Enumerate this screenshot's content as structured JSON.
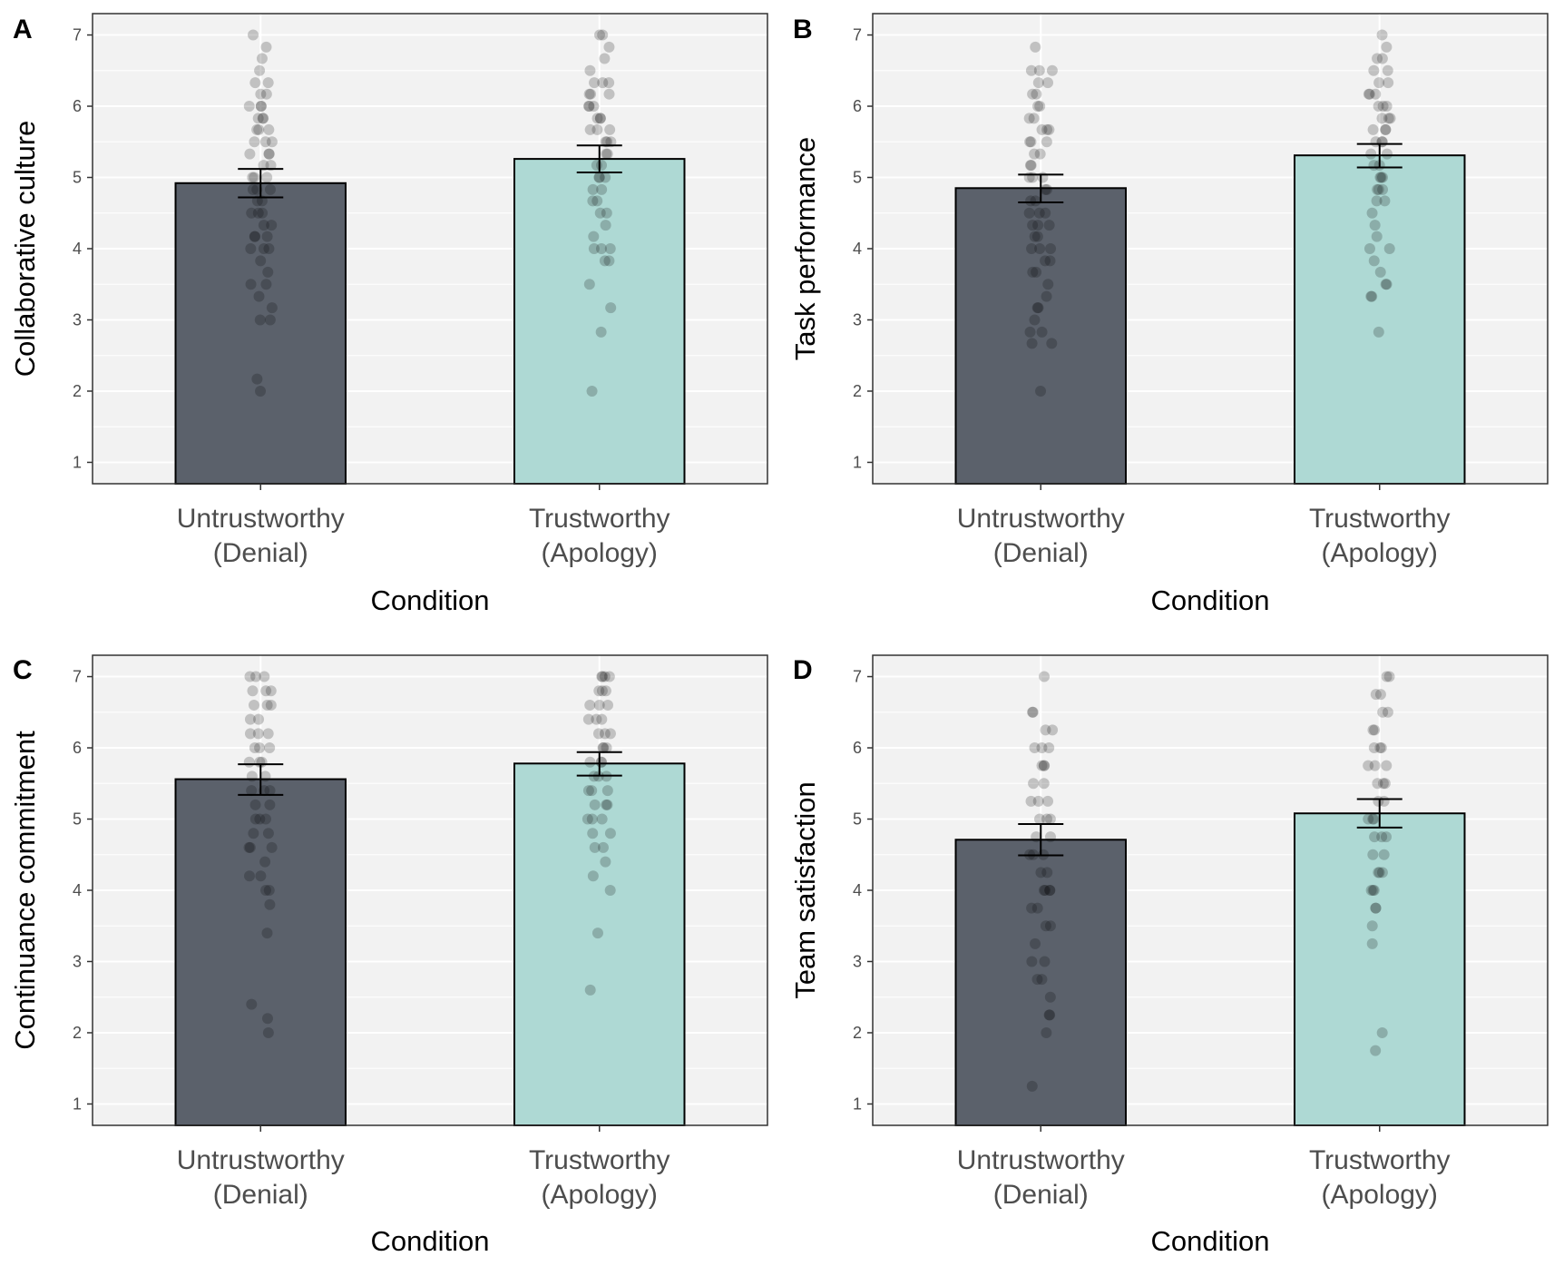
{
  "chart_data": [
    {
      "type": "bar",
      "panel": "A",
      "ylabel": "Collaborative culture",
      "xlabel": "Condition",
      "categories": [
        "Untrustworthy\n(Denial)",
        "Trustworthy\n(Apology)"
      ],
      "values": [
        4.92,
        5.26
      ],
      "error_low": [
        4.72,
        5.07
      ],
      "error_high": [
        5.12,
        5.45
      ],
      "ylim": [
        0.7,
        7.3
      ],
      "yticks": [
        1,
        2,
        3,
        4,
        5,
        6,
        7
      ],
      "grid": true,
      "colors": [
        "#5b616b",
        "#aed9d4"
      ],
      "points": [
        [
          7.0,
          6.83,
          6.67,
          6.5,
          6.33,
          6.33,
          6.17,
          6.17,
          6.0,
          6.0,
          6.0,
          5.83,
          5.83,
          5.83,
          5.67,
          5.67,
          5.67,
          5.5,
          5.5,
          5.5,
          5.33,
          5.33,
          5.33,
          5.17,
          5.17,
          5.0,
          5.0,
          5.0,
          4.83,
          4.83,
          4.83,
          4.67,
          4.67,
          4.5,
          4.5,
          4.5,
          4.33,
          4.33,
          4.17,
          4.17,
          4.17,
          4.0,
          4.0,
          4.0,
          3.83,
          3.67,
          3.5,
          3.5,
          3.33,
          3.17,
          3.0,
          3.0,
          2.17,
          2.0
        ],
        [
          7.0,
          7.0,
          6.83,
          6.67,
          6.5,
          6.33,
          6.33,
          6.33,
          6.17,
          6.17,
          6.17,
          6.0,
          6.0,
          6.0,
          5.83,
          5.83,
          5.83,
          5.67,
          5.67,
          5.67,
          5.5,
          5.5,
          5.5,
          5.33,
          5.33,
          5.17,
          5.17,
          5.0,
          5.0,
          5.0,
          4.83,
          4.83,
          4.67,
          4.67,
          4.5,
          4.5,
          4.33,
          4.17,
          4.0,
          4.0,
          4.0,
          3.83,
          3.83,
          3.5,
          3.17,
          2.83,
          2.0
        ]
      ]
    },
    {
      "type": "bar",
      "panel": "B",
      "ylabel": "Task performance",
      "xlabel": "Condition",
      "categories": [
        "Untrustworthy\n(Denial)",
        "Trustworthy\n(Apology)"
      ],
      "values": [
        4.85,
        5.31
      ],
      "error_low": [
        4.65,
        5.14
      ],
      "error_high": [
        5.04,
        5.47
      ],
      "ylim": [
        0.7,
        7.3
      ],
      "yticks": [
        1,
        2,
        3,
        4,
        5,
        6,
        7
      ],
      "grid": true,
      "colors": [
        "#5b616b",
        "#aed9d4"
      ],
      "points": [
        [
          6.83,
          6.5,
          6.5,
          6.5,
          6.33,
          6.33,
          6.17,
          6.17,
          6.0,
          6.0,
          5.83,
          5.83,
          5.67,
          5.67,
          5.67,
          5.5,
          5.5,
          5.5,
          5.33,
          5.33,
          5.17,
          5.17,
          5.0,
          5.0,
          5.0,
          4.83,
          4.83,
          4.67,
          4.67,
          4.5,
          4.5,
          4.5,
          4.33,
          4.33,
          4.33,
          4.17,
          4.17,
          4.0,
          4.0,
          4.0,
          3.83,
          3.83,
          3.67,
          3.67,
          3.5,
          3.33,
          3.17,
          3.17,
          3.0,
          2.83,
          2.83,
          2.67,
          2.67,
          2.0
        ],
        [
          7.0,
          6.83,
          6.67,
          6.67,
          6.5,
          6.5,
          6.33,
          6.33,
          6.17,
          6.17,
          6.17,
          6.0,
          6.0,
          6.0,
          5.83,
          5.83,
          5.83,
          5.67,
          5.67,
          5.67,
          5.5,
          5.5,
          5.5,
          5.33,
          5.33,
          5.17,
          5.17,
          5.0,
          5.0,
          5.0,
          4.83,
          4.83,
          4.83,
          4.67,
          4.67,
          4.5,
          4.33,
          4.17,
          4.0,
          4.0,
          3.83,
          3.67,
          3.5,
          3.5,
          3.33,
          3.33,
          2.83
        ]
      ]
    },
    {
      "type": "bar",
      "panel": "C",
      "ylabel": "Continuance commitment",
      "xlabel": "Condition",
      "categories": [
        "Untrustworthy\n(Denial)",
        "Trustworthy\n(Apology)"
      ],
      "values": [
        5.56,
        5.78
      ],
      "error_low": [
        5.34,
        5.61
      ],
      "error_high": [
        5.77,
        5.94
      ],
      "ylim": [
        0.7,
        7.3
      ],
      "yticks": [
        1,
        2,
        3,
        4,
        5,
        6,
        7
      ],
      "grid": true,
      "colors": [
        "#5b616b",
        "#aed9d4"
      ],
      "points": [
        [
          7.0,
          7.0,
          7.0,
          6.8,
          6.8,
          6.8,
          6.6,
          6.6,
          6.6,
          6.4,
          6.4,
          6.2,
          6.2,
          6.2,
          6.0,
          6.0,
          6.0,
          5.8,
          5.8,
          5.8,
          5.6,
          5.6,
          5.4,
          5.4,
          5.4,
          5.2,
          5.2,
          5.0,
          5.0,
          5.0,
          4.8,
          4.8,
          4.6,
          4.6,
          4.6,
          4.4,
          4.2,
          4.2,
          4.0,
          4.0,
          3.8,
          3.4,
          2.4,
          2.2,
          2.0
        ],
        [
          7.0,
          7.0,
          7.0,
          7.0,
          6.8,
          6.8,
          6.8,
          6.6,
          6.6,
          6.6,
          6.4,
          6.4,
          6.4,
          6.2,
          6.2,
          6.2,
          6.0,
          6.0,
          6.0,
          5.8,
          5.8,
          5.8,
          5.6,
          5.6,
          5.6,
          5.4,
          5.4,
          5.4,
          5.2,
          5.2,
          5.2,
          5.0,
          5.0,
          5.0,
          4.8,
          4.8,
          4.6,
          4.6,
          4.4,
          4.2,
          4.0,
          3.4,
          2.6
        ]
      ]
    },
    {
      "type": "bar",
      "panel": "D",
      "ylabel": "Team satisfaction",
      "xlabel": "Condition",
      "categories": [
        "Untrustworthy\n(Denial)",
        "Trustworthy\n(Apology)"
      ],
      "values": [
        4.71,
        5.08
      ],
      "error_low": [
        4.49,
        4.88
      ],
      "error_high": [
        4.93,
        5.28
      ],
      "ylim": [
        0.7,
        7.3
      ],
      "yticks": [
        1,
        2,
        3,
        4,
        5,
        6,
        7
      ],
      "grid": true,
      "colors": [
        "#5b616b",
        "#aed9d4"
      ],
      "points": [
        [
          7.0,
          6.5,
          6.5,
          6.25,
          6.25,
          6.0,
          6.0,
          6.0,
          5.75,
          5.75,
          5.75,
          5.5,
          5.5,
          5.25,
          5.25,
          5.25,
          5.0,
          5.0,
          5.0,
          4.75,
          4.75,
          4.5,
          4.5,
          4.5,
          4.25,
          4.25,
          4.0,
          4.0,
          4.0,
          4.0,
          3.75,
          3.75,
          3.5,
          3.5,
          3.25,
          3.0,
          3.0,
          2.75,
          2.75,
          2.5,
          2.25,
          2.25,
          2.0,
          1.25
        ],
        [
          7.0,
          7.0,
          6.75,
          6.75,
          6.5,
          6.5,
          6.25,
          6.25,
          6.0,
          6.0,
          6.0,
          5.75,
          5.75,
          5.75,
          5.5,
          5.5,
          5.5,
          5.25,
          5.25,
          5.0,
          5.0,
          5.0,
          4.75,
          4.75,
          4.75,
          4.5,
          4.5,
          4.25,
          4.25,
          4.25,
          4.0,
          4.0,
          4.0,
          3.75,
          3.75,
          3.5,
          3.25,
          2.0,
          1.75
        ]
      ]
    }
  ]
}
